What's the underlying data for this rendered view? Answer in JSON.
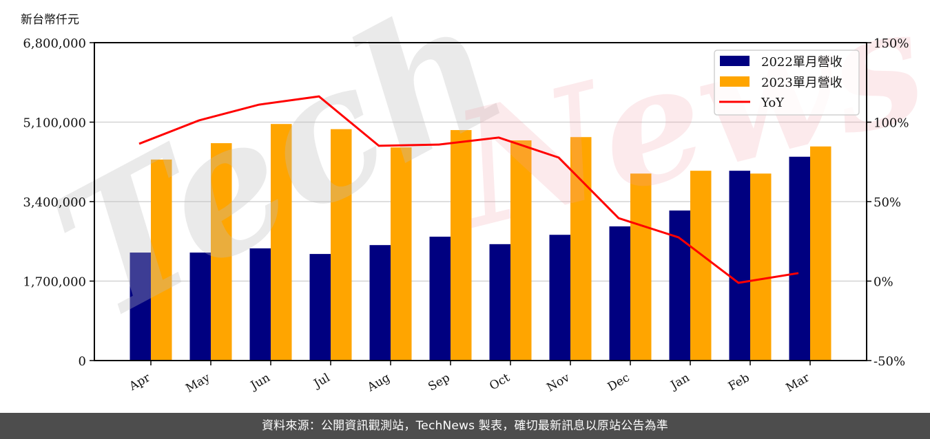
{
  "unit_label": "新台幣仟元",
  "footer": "資料來源：公開資訊觀測站，TechNews 製表，確切最新訊息以原站公告為準",
  "watermark": {
    "part1": "Tech",
    "part2": "News"
  },
  "colors": {
    "series_2022": "#000080",
    "series_2023": "#FFA500",
    "yoy": "#FF0000",
    "grid": "#d3d3d3",
    "footer_bg": "#4d4d4d"
  },
  "chart_data": {
    "type": "bar",
    "title": "",
    "xlabel": "",
    "ylabel": "新台幣仟元",
    "y2label": "",
    "categories": [
      "Apr",
      "May",
      "Jun",
      "Jul",
      "Aug",
      "Sep",
      "Oct",
      "Nov",
      "Dec",
      "Jan",
      "Feb",
      "Mar"
    ],
    "series": [
      {
        "name": "2022單月營收",
        "type": "bar",
        "axis": "left",
        "color": "#000080",
        "values": [
          2310000,
          2310000,
          2400000,
          2280000,
          2470000,
          2650000,
          2490000,
          2690000,
          2870000,
          3210000,
          4060000,
          4360000
        ]
      },
      {
        "name": "2023單月營收",
        "type": "bar",
        "axis": "left",
        "color": "#FFA500",
        "values": [
          4300000,
          4650000,
          5060000,
          4950000,
          4560000,
          4930000,
          4710000,
          4780000,
          4000000,
          4060000,
          4000000,
          4580000
        ]
      },
      {
        "name": "YoY",
        "type": "line",
        "axis": "right",
        "color": "#FF0000",
        "values": [
          86.4,
          101.1,
          111.0,
          116.2,
          85.1,
          85.9,
          90.3,
          77.7,
          39.6,
          27.5,
          -1.1,
          5.0
        ]
      }
    ],
    "ylim": [
      0,
      6800000
    ],
    "y2lim": [
      -50,
      150
    ],
    "yticks": [
      0,
      1700000,
      3400000,
      5100000,
      6800000
    ],
    "ytick_labels": [
      "0",
      "1,700,000",
      "3,400,000",
      "5,100,000",
      "6,800,000"
    ],
    "y2ticks": [
      -50,
      0,
      50,
      100,
      150
    ],
    "y2tick_labels": [
      "-50%",
      "0%",
      "50%",
      "100%",
      "150%"
    ],
    "grid": true,
    "legend_position": "upper right",
    "legend": [
      "2022單月營收",
      "2023單月營收",
      "YoY"
    ]
  }
}
